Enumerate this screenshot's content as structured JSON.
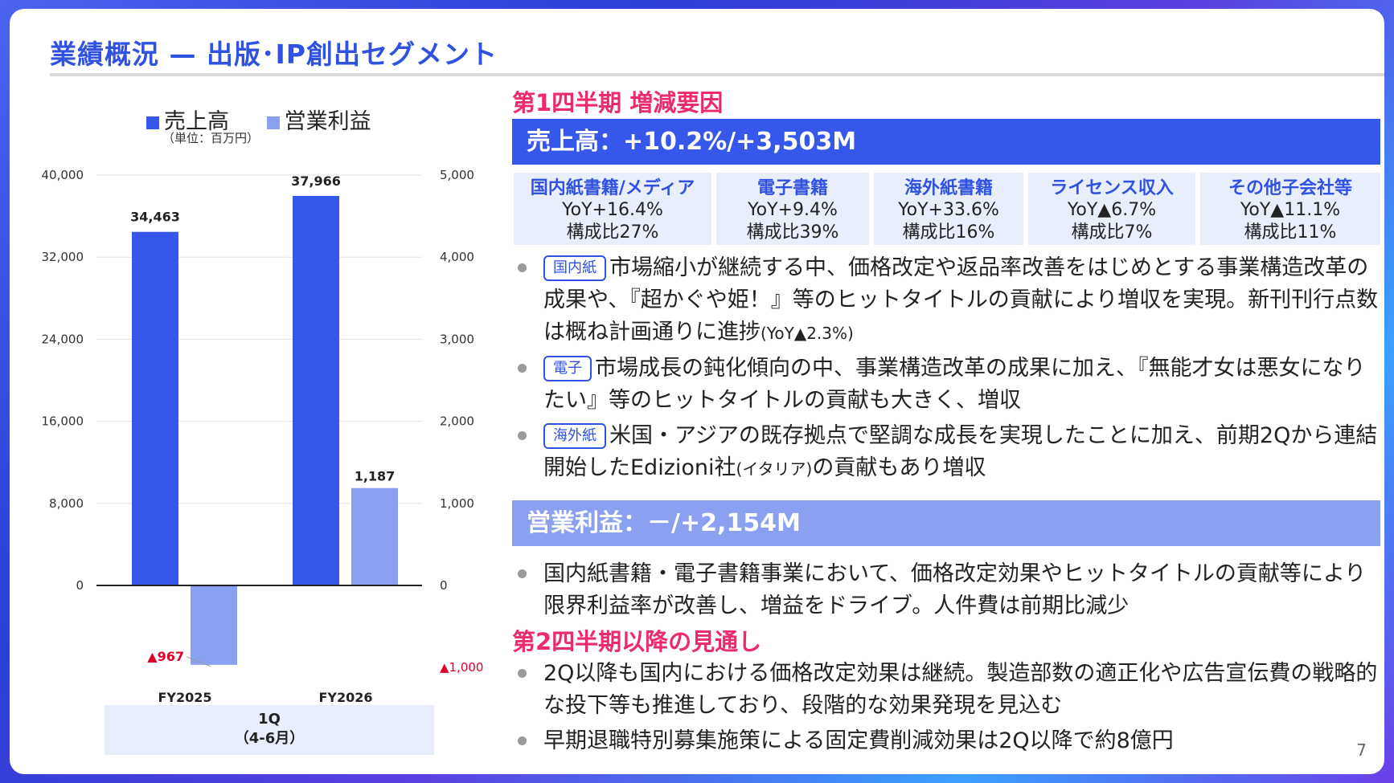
{
  "title": "業績概況 — 出版･IP創出セグメント",
  "page_number": "7",
  "colors": {
    "sales": "#3658ea",
    "op": "#8aa1f2",
    "accent": "#2f52e0",
    "pink": "#ec2a6e",
    "negative": "#e0002a"
  },
  "chart_data": {
    "type": "bar",
    "unit": "（単位：百万円）",
    "categories": [
      "FY2025",
      "FY2026"
    ],
    "period_label": "1Q",
    "period_sub": "（4-6月）",
    "series": [
      {
        "name": "売上高",
        "axis": "left",
        "values": [
          34463,
          37966
        ],
        "labels": [
          "34,463",
          "37,966"
        ]
      },
      {
        "name": "営業利益",
        "axis": "right",
        "values": [
          -967,
          1187
        ],
        "labels": [
          "▲967",
          "1,187"
        ]
      }
    ],
    "left_axis": {
      "min": 0,
      "max": 40000,
      "ticks": [
        0,
        8000,
        16000,
        24000,
        32000,
        40000
      ],
      "tick_labels": [
        "0",
        "8,000",
        "16,000",
        "24,000",
        "32,000",
        "40,000"
      ]
    },
    "right_axis": {
      "min": -1000,
      "max": 5000,
      "ticks": [
        -1000,
        0,
        1000,
        2000,
        3000,
        4000,
        5000
      ],
      "tick_labels": [
        "▲1,000",
        "0",
        "1,000",
        "2,000",
        "3,000",
        "4,000",
        "5,000"
      ]
    },
    "grid": true,
    "legend": "top"
  },
  "q1": {
    "heading": "第1四半期 増減要因",
    "sales_head": "売上高：+10.2%/+3,503M",
    "categories": [
      {
        "name": "国内紙書籍/メディア",
        "yoy": "YoY+16.4%",
        "share": "構成比27%"
      },
      {
        "name": "電子書籍",
        "yoy": "YoY+9.4%",
        "share": "構成比39%"
      },
      {
        "name": "海外紙書籍",
        "yoy": "YoY+33.6%",
        "share": "構成比16%"
      },
      {
        "name": "ライセンス収入",
        "yoy": "YoY▲6.7%",
        "share": "構成比7%"
      },
      {
        "name": "その他子会社等",
        "yoy": "YoY▲11.1%",
        "share": "構成比11%"
      }
    ],
    "bullets": [
      {
        "tag": "国内紙",
        "text": "市場縮小が継続する中、価格改定や返品率改善をはじめとする事業構造改革の成果や、『超かぐや姫！』等のヒットタイトルの貢献により増収を実現。新刊刊行点数は概ね計画通りに進捗",
        "note": "(YoY▲2.3%)"
      },
      {
        "tag": "電子",
        "text": "市場成長の鈍化傾向の中、事業構造改革の成果に加え、『無能才女は悪女になりたい』等のヒットタイトルの貢献も大きく、増収"
      },
      {
        "tag": "海外紙",
        "text": "米国・アジアの既存拠点で堅調な成長を実現したことに加え、前期2Qから連結開始したEdizioni社",
        "note": "(イタリア)",
        "text2": "の貢献もあり増収"
      }
    ],
    "op_head": "営業利益：－/+2,154M",
    "op_bullets": [
      "国内紙書籍・電子書籍事業において、価格改定効果やヒットタイトルの貢献等により限界利益率が改善し、増益をドライブ。人件費は前期比減少"
    ]
  },
  "outlook": {
    "heading": "第2四半期以降の見通し",
    "bullets": [
      "2Q以降も国内における価格改定効果は継続。製造部数の適正化や広告宣伝費の戦略的な投下等も推進しており、段階的な効果発現を見込む",
      "早期退職特別募集施策による固定費削減効果は2Q以降で約8億円"
    ]
  }
}
